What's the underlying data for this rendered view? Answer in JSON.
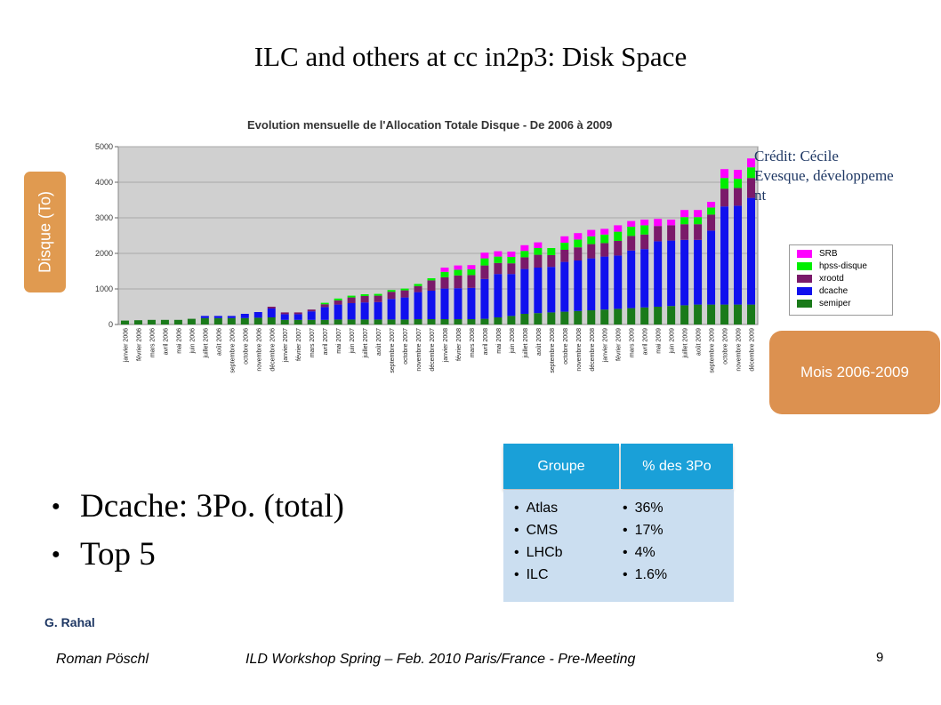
{
  "slide": {
    "title": "ILC and others at cc in2p3: Disk Space",
    "credit_line1": "Crédit: Cécile",
    "credit_line2": "Evesque, développeme",
    "credit_line3": "nt",
    "bullets": [
      "Dcache: 3Po. (total)",
      "Top 5"
    ],
    "author": "G. Rahal",
    "footer_left": "Roman Pöschl",
    "footer_center": "ILD Workshop Spring – Feb. 2010 Paris/France - Pre-Meeting",
    "page_number": "9",
    "ylabel_box": "Disque (To)",
    "xlabel_box": "Mois 2006-2009",
    "colors": {
      "accent_orange": "#e09a50",
      "table_header": "#1aa0d8",
      "table_body": "#cbdef0"
    }
  },
  "table": {
    "headers": [
      "Groupe",
      "% des 3Po"
    ],
    "groups": [
      "Atlas",
      "CMS",
      "LHCb",
      "ILC"
    ],
    "percents": [
      "36%",
      "17%",
      "4%",
      "1.6%"
    ]
  },
  "chart_data": {
    "type": "bar",
    "stacked": true,
    "title": "Evolution mensuelle de l'Allocation Totale Disque - De 2006 à 2009",
    "xlabel": "",
    "ylabel": "",
    "ylim": [
      0,
      5000
    ],
    "yticks": [
      0,
      1000,
      2000,
      3000,
      4000,
      5000
    ],
    "grid": true,
    "legend_position": "right",
    "categories": [
      "janvier 2006",
      "février 2006",
      "mars 2006",
      "avril 2006",
      "mai 2006",
      "juin 2006",
      "juillet 2006",
      "août 2006",
      "septembre 2006",
      "octobre 2006",
      "novembre 2006",
      "décembre 2006",
      "janvier 2007",
      "février 2007",
      "mars 2007",
      "avril 2007",
      "mai 2007",
      "juin 2007",
      "juillet 2007",
      "août 2007",
      "septembre 2007",
      "octobre 2007",
      "novembre 2007",
      "décembre 2007",
      "janvier 2008",
      "février 2008",
      "mars 2008",
      "avril 2008",
      "mai 2008",
      "juin 2008",
      "juillet 2008",
      "août 2008",
      "septembre 2008",
      "octobre 2008",
      "novembre 2008",
      "décembre 2008",
      "janvier 2009",
      "février 2009",
      "mars 2009",
      "avril 2009",
      "mai 2009",
      "juin 2009",
      "juillet 2009",
      "août 2009",
      "septembre 2009",
      "octobre 2009",
      "novembre 2009",
      "décembre 2009"
    ],
    "series": [
      {
        "name": "semiper",
        "color": "#1a7a1a",
        "values": [
          110,
          120,
          130,
          130,
          130,
          160,
          180,
          180,
          180,
          180,
          190,
          200,
          130,
          130,
          130,
          130,
          140,
          140,
          140,
          140,
          140,
          140,
          150,
          150,
          150,
          150,
          150,
          160,
          200,
          240,
          300,
          320,
          340,
          360,
          380,
          400,
          420,
          440,
          460,
          480,
          500,
          520,
          540,
          560,
          560,
          560,
          560,
          560
        ]
      },
      {
        "name": "dcache",
        "color": "#1010ee",
        "values": [
          0,
          0,
          0,
          0,
          0,
          0,
          60,
          60,
          60,
          120,
          160,
          250,
          160,
          160,
          240,
          360,
          420,
          460,
          480,
          490,
          580,
          620,
          760,
          800,
          860,
          870,
          880,
          1120,
          1220,
          1180,
          1260,
          1280,
          1280,
          1400,
          1420,
          1460,
          1490,
          1500,
          1620,
          1640,
          1840,
          1840,
          1840,
          1820,
          2080,
          2760,
          2780,
          3000
        ]
      },
      {
        "name": "xrootd",
        "color": "#7a1a6a",
        "values": [
          0,
          0,
          0,
          0,
          0,
          0,
          0,
          0,
          0,
          0,
          0,
          50,
          50,
          50,
          50,
          80,
          120,
          160,
          180,
          180,
          200,
          200,
          170,
          290,
          320,
          360,
          360,
          380,
          310,
          300,
          330,
          360,
          330,
          340,
          370,
          400,
          380,
          410,
          410,
          410,
          430,
          430,
          440,
          440,
          450,
          500,
          500,
          560
        ]
      },
      {
        "name": "hpss-disque",
        "color": "#00ee00",
        "values": [
          0,
          0,
          0,
          0,
          0,
          0,
          0,
          0,
          0,
          0,
          0,
          0,
          0,
          0,
          0,
          40,
          50,
          50,
          50,
          50,
          50,
          50,
          60,
          60,
          150,
          160,
          160,
          200,
          180,
          180,
          180,
          190,
          200,
          200,
          220,
          220,
          240,
          260,
          260,
          260,
          0,
          0,
          200,
          200,
          200,
          300,
          260,
          300
        ]
      },
      {
        "name": "SRB",
        "color": "#ff00ff",
        "values": [
          0,
          0,
          0,
          0,
          0,
          0,
          0,
          0,
          0,
          0,
          0,
          0,
          0,
          0,
          0,
          0,
          0,
          0,
          0,
          0,
          0,
          0,
          0,
          0,
          120,
          120,
          120,
          160,
          150,
          150,
          160,
          160,
          0,
          180,
          180,
          180,
          160,
          180,
          160,
          160,
          200,
          160,
          200,
          200,
          160,
          250,
          250,
          250
        ]
      }
    ]
  }
}
